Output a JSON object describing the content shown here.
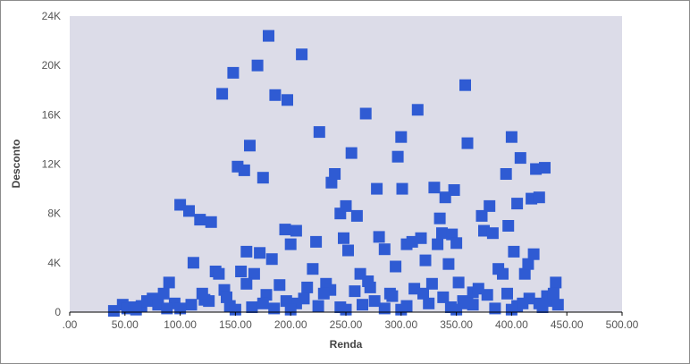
{
  "chart_data": {
    "type": "scatter",
    "title": "",
    "xlabel": "Renda",
    "ylabel": "Desconto",
    "xlim": [
      0,
      500
    ],
    "ylim": [
      0,
      24000
    ],
    "x_ticks": [
      0,
      50,
      100,
      150,
      200,
      250,
      300,
      350,
      400,
      450,
      500
    ],
    "x_tick_labels": [
      ".00",
      "50.00",
      "100.00",
      "150.00",
      "200.00",
      "250.00",
      "300.00",
      "350.00",
      "400.00",
      "450.00",
      "500.00"
    ],
    "y_ticks": [
      0,
      4000,
      8000,
      12000,
      16000,
      20000,
      24000
    ],
    "y_tick_labels": [
      "0",
      "4K",
      "8K",
      "12K",
      "16K",
      "20K",
      "24K"
    ],
    "grid": false,
    "legend": "none",
    "colors": {
      "marker": "#2f5bd3",
      "plot_bg": "#dcdce8",
      "axis": "#000000"
    },
    "series": [
      {
        "points": [
          [
            40,
            100
          ],
          [
            48,
            600
          ],
          [
            52,
            300
          ],
          [
            58,
            400
          ],
          [
            65,
            500
          ],
          [
            70,
            900
          ],
          [
            75,
            1100
          ],
          [
            80,
            600
          ],
          [
            85,
            1500
          ],
          [
            90,
            2400
          ],
          [
            95,
            700
          ],
          [
            100,
            8700
          ],
          [
            108,
            8200
          ],
          [
            112,
            4000
          ],
          [
            118,
            7500
          ],
          [
            122,
            1000
          ],
          [
            128,
            7300
          ],
          [
            132,
            3300
          ],
          [
            135,
            3100
          ],
          [
            138,
            17700
          ],
          [
            140,
            1800
          ],
          [
            148,
            19400
          ],
          [
            152,
            11800
          ],
          [
            155,
            3300
          ],
          [
            158,
            11500
          ],
          [
            160,
            4900
          ],
          [
            163,
            13500
          ],
          [
            167,
            3100
          ],
          [
            170,
            20000
          ],
          [
            172,
            4800
          ],
          [
            175,
            10900
          ],
          [
            180,
            22400
          ],
          [
            183,
            4300
          ],
          [
            186,
            17600
          ],
          [
            190,
            2200
          ],
          [
            195,
            6700
          ],
          [
            197,
            17200
          ],
          [
            200,
            5500
          ],
          [
            205,
            6600
          ],
          [
            210,
            20900
          ],
          [
            215,
            2000
          ],
          [
            220,
            3500
          ],
          [
            223,
            5700
          ],
          [
            226,
            14600
          ],
          [
            232,
            2300
          ],
          [
            237,
            10500
          ],
          [
            240,
            11200
          ],
          [
            245,
            8000
          ],
          [
            248,
            6000
          ],
          [
            250,
            8600
          ],
          [
            252,
            5000
          ],
          [
            255,
            12900
          ],
          [
            260,
            7800
          ],
          [
            263,
            3100
          ],
          [
            268,
            16100
          ],
          [
            272,
            2000
          ],
          [
            278,
            10000
          ],
          [
            280,
            6100
          ],
          [
            285,
            5100
          ],
          [
            290,
            1500
          ],
          [
            295,
            3700
          ],
          [
            297,
            12600
          ],
          [
            300,
            14200
          ],
          [
            301,
            10000
          ],
          [
            305,
            5500
          ],
          [
            310,
            5700
          ],
          [
            315,
            16400
          ],
          [
            318,
            6000
          ],
          [
            322,
            4200
          ],
          [
            328,
            2300
          ],
          [
            330,
            10100
          ],
          [
            333,
            5500
          ],
          [
            335,
            7600
          ],
          [
            337,
            6400
          ],
          [
            340,
            9300
          ],
          [
            343,
            3900
          ],
          [
            346,
            6300
          ],
          [
            348,
            9900
          ],
          [
            350,
            5600
          ],
          [
            352,
            2400
          ],
          [
            358,
            18400
          ],
          [
            360,
            13700
          ],
          [
            365,
            1600
          ],
          [
            370,
            1900
          ],
          [
            373,
            7800
          ],
          [
            375,
            6600
          ],
          [
            380,
            8600
          ],
          [
            383,
            6400
          ],
          [
            388,
            3500
          ],
          [
            392,
            3100
          ],
          [
            395,
            11200
          ],
          [
            397,
            7000
          ],
          [
            400,
            14200
          ],
          [
            402,
            4900
          ],
          [
            405,
            8800
          ],
          [
            408,
            12500
          ],
          [
            412,
            3100
          ],
          [
            415,
            3900
          ],
          [
            418,
            9200
          ],
          [
            420,
            4700
          ],
          [
            422,
            11600
          ],
          [
            425,
            9300
          ],
          [
            430,
            11700
          ],
          [
            432,
            1300
          ],
          [
            435,
            900
          ],
          [
            440,
            2400
          ],
          [
            442,
            600
          ],
          [
            110,
            600
          ],
          [
            145,
            500
          ],
          [
            165,
            400
          ],
          [
            185,
            300
          ],
          [
            205,
            700
          ],
          [
            225,
            500
          ],
          [
            245,
            400
          ],
          [
            265,
            600
          ],
          [
            285,
            300
          ],
          [
            305,
            500
          ],
          [
            325,
            700
          ],
          [
            345,
            400
          ],
          [
            365,
            600
          ],
          [
            385,
            300
          ],
          [
            405,
            500
          ],
          [
            425,
            700
          ],
          [
            142,
            1200
          ],
          [
            178,
            1400
          ],
          [
            212,
            1100
          ],
          [
            258,
            1700
          ],
          [
            292,
            1300
          ],
          [
            338,
            1200
          ],
          [
            378,
            1400
          ],
          [
            416,
            1100
          ],
          [
            126,
            900
          ],
          [
            196,
            900
          ],
          [
            236,
            1800
          ],
          [
            276,
            900
          ],
          [
            312,
            1900
          ],
          [
            356,
            900
          ],
          [
            396,
            1500
          ],
          [
            428,
            400
          ],
          [
            60,
            200
          ],
          [
            88,
            300
          ],
          [
            150,
            200
          ],
          [
            200,
            200
          ],
          [
            250,
            200
          ],
          [
            300,
            200
          ],
          [
            350,
            200
          ],
          [
            400,
            200
          ],
          [
            120,
            1500
          ],
          [
            160,
            2300
          ],
          [
            230,
            1500
          ],
          [
            270,
            2500
          ],
          [
            320,
            1500
          ],
          [
            360,
            700
          ],
          [
            410,
            700
          ],
          [
            438,
            1500
          ],
          [
            100,
            300
          ],
          [
            175,
            700
          ]
        ]
      }
    ]
  }
}
